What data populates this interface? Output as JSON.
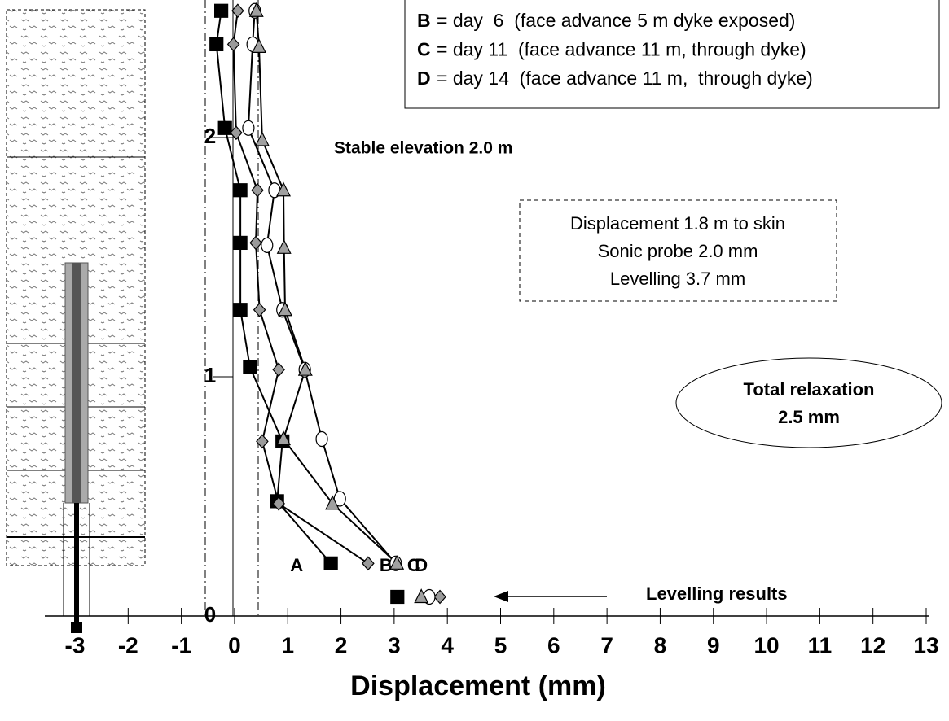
{
  "chart_data": {
    "type": "line",
    "x_label": "Displacement (mm)",
    "xlim": [
      -3,
      13
    ],
    "xticks": [
      -3,
      -2,
      -1,
      0,
      1,
      2,
      3,
      4,
      5,
      6,
      7,
      8,
      9,
      10,
      11,
      12,
      13
    ],
    "ylim": [
      0,
      2.57
    ],
    "yticks": [
      0,
      1,
      2
    ],
    "series": [
      {
        "name": "A",
        "color": "#000000",
        "marker": "square",
        "x": [
          -0.25,
          -0.34,
          -0.18,
          0.11,
          0.11,
          0.11,
          0.29,
          0.9,
          0.8,
          1.81
        ],
        "values": [
          2.53,
          2.39,
          2.04,
          1.78,
          1.56,
          1.28,
          1.04,
          0.73,
          0.48,
          0.22
        ],
        "levelling_x": 3.06,
        "levelling_y": 0.08
      },
      {
        "name": "B",
        "color": "#9a9a9a",
        "marker": "diamond",
        "description": "= day  6  (face advance 5 m dyke exposed)",
        "x": [
          0.06,
          -0.02,
          0.03,
          0.43,
          0.4,
          0.47,
          0.83,
          0.52,
          0.83,
          2.51
        ],
        "values": [
          2.53,
          2.39,
          2.02,
          1.78,
          1.56,
          1.28,
          1.03,
          0.73,
          0.47,
          0.22
        ],
        "levelling_x": 3.86,
        "levelling_y": 0.08
      },
      {
        "name": "C",
        "color": "#ffffff",
        "marker": "circle",
        "description": "= day 11  (face advance 11 m, through dyke)",
        "x": [
          0.38,
          0.34,
          0.26,
          0.75,
          0.61,
          0.9,
          1.32,
          1.64,
          1.98,
          3.03
        ],
        "values": [
          2.53,
          2.39,
          2.04,
          1.78,
          1.55,
          1.28,
          1.03,
          0.74,
          0.49,
          0.22
        ],
        "levelling_x": 3.66,
        "levelling_y": 0.08
      },
      {
        "name": "D",
        "color": "#a0a0a0",
        "marker": "triangle",
        "description": "= day 14  (face advance 11 m,  through dyke)",
        "x": [
          0.41,
          0.46,
          0.52,
          0.92,
          0.93,
          0.95,
          1.33,
          0.92,
          1.84,
          3.05
        ],
        "values": [
          2.53,
          2.38,
          1.99,
          1.78,
          1.54,
          1.28,
          1.03,
          0.74,
          0.47,
          0.22
        ],
        "levelling_x": 3.51,
        "levelling_y": 0.08
      }
    ],
    "annotations": {
      "stable": "Stable elevation 2.0 m",
      "box": [
        "Displacement 1.8 m to skin",
        "Sonic probe 2.0 mm",
        "Levelling 3.7 mm"
      ],
      "relaxation": [
        "Total relaxation",
        "2.5 mm"
      ],
      "levelling": "Levelling results"
    }
  }
}
